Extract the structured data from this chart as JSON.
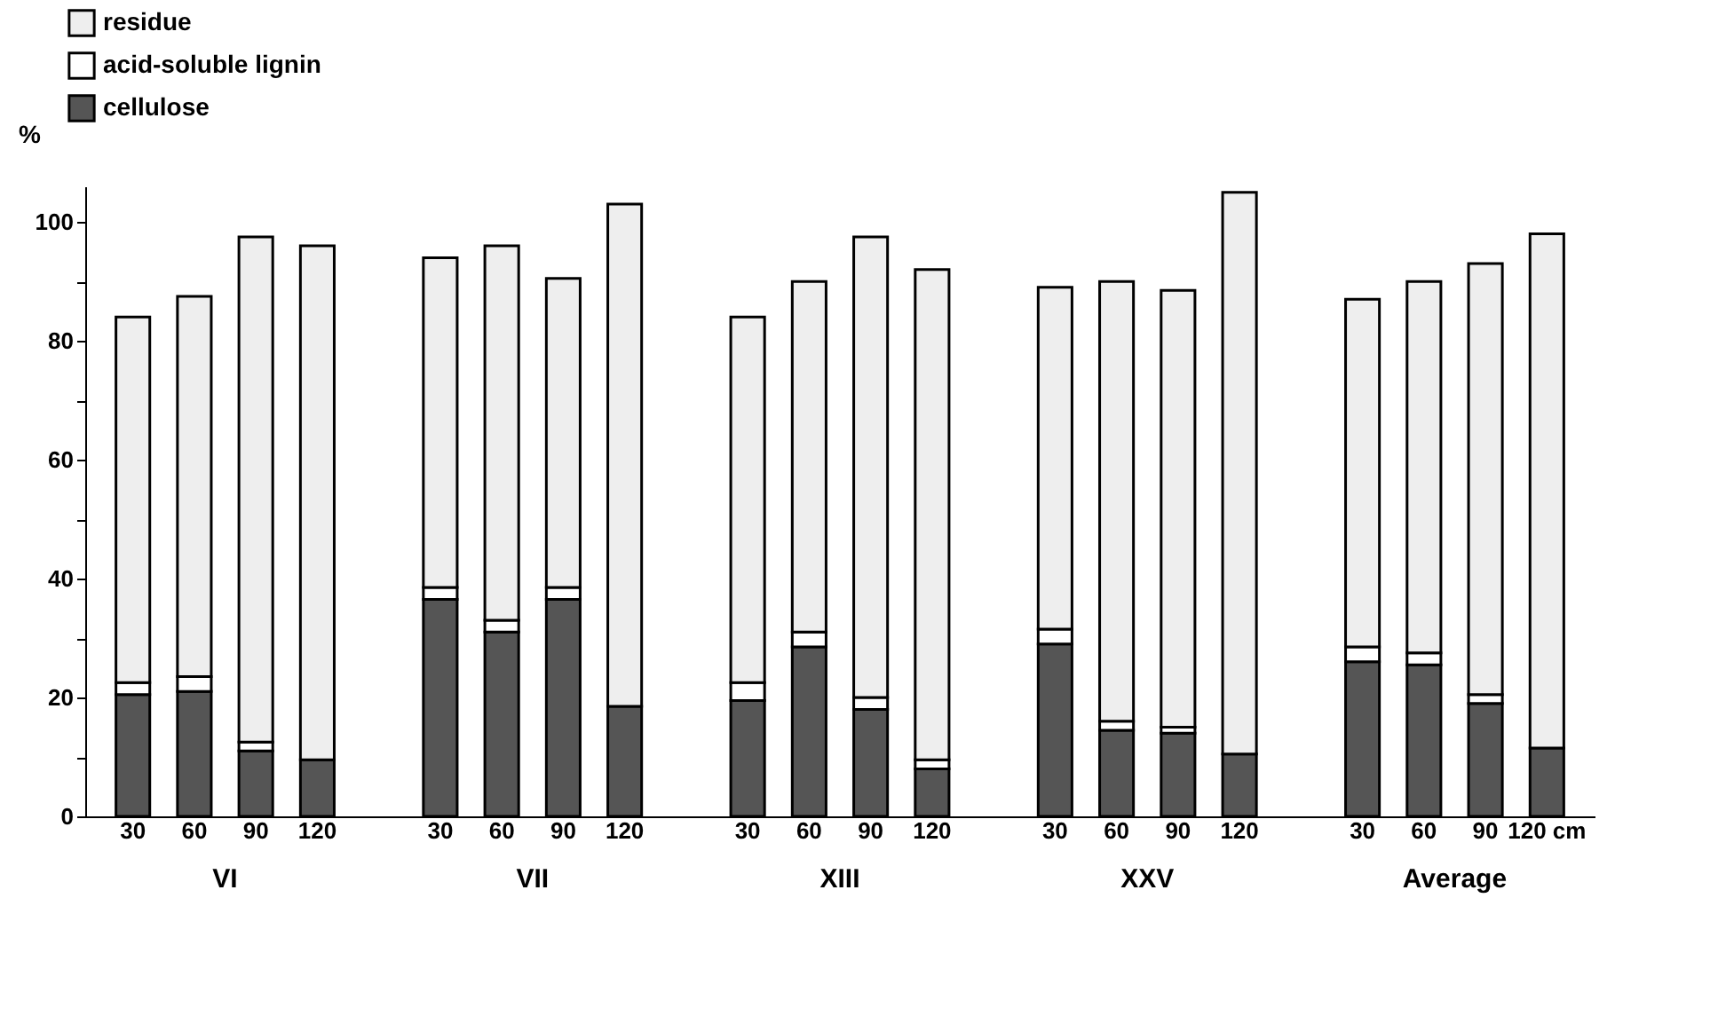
{
  "chart_data": {
    "type": "bar",
    "stacked": true,
    "ylabel": "%",
    "categories": [
      "30",
      "60",
      "90",
      "120",
      null,
      "30",
      "60",
      "90",
      "120",
      null,
      "30",
      "60",
      "90",
      "120",
      null,
      "30",
      "60",
      "90",
      "120",
      null,
      "30",
      "60",
      "90",
      "120 cm"
    ],
    "series": [
      {
        "name": "cellulose",
        "color": "#555555",
        "values": [
          20.5,
          21,
          11,
          9.5,
          null,
          36.5,
          31,
          36.5,
          18.5,
          null,
          19.5,
          28.5,
          18,
          8,
          null,
          29,
          14.5,
          14,
          10.5,
          null,
          26,
          25.5,
          19,
          11.5
        ]
      },
      {
        "name": "acid-soluble lignin",
        "color": "#ffffff",
        "values": [
          2,
          2.5,
          1.5,
          null,
          null,
          2,
          2,
          2,
          null,
          null,
          3,
          2.5,
          2,
          1.5,
          null,
          2.5,
          1.5,
          1,
          null,
          null,
          2.5,
          2,
          1.5,
          null
        ]
      },
      {
        "name": "residue",
        "color": "#eeeeee",
        "values": [
          61.5,
          64,
          85,
          86.5,
          null,
          55.5,
          63,
          52,
          84.5,
          null,
          61.5,
          59,
          77.5,
          82.5,
          null,
          57.5,
          74,
          73.5,
          94.5,
          null,
          58.5,
          62.5,
          72.5,
          86.5
        ]
      }
    ],
    "annotations": [
      "VI",
      "VII",
      "XIII",
      "XXV",
      "Average"
    ],
    "ylim": [
      0,
      106
    ],
    "yticks": [
      0,
      {
        "value": 10,
        "label": null
      },
      20,
      {
        "value": 30,
        "label": null
      },
      40,
      {
        "value": 50,
        "label": null
      },
      60,
      {
        "value": 70,
        "label": null
      },
      80,
      {
        "value": 90,
        "label": null
      },
      100
    ],
    "grid": false,
    "legend": "top left"
  }
}
